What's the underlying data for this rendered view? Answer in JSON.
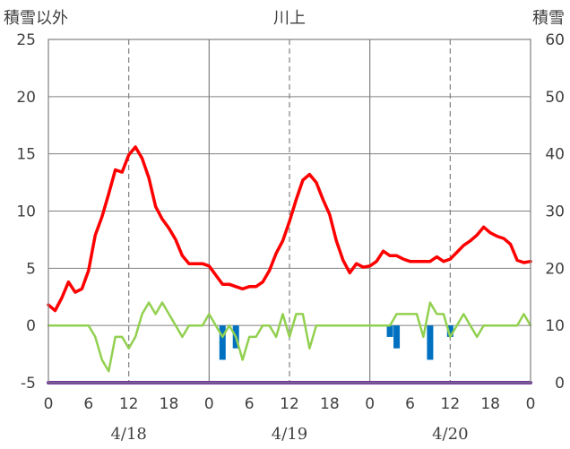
{
  "chart_data": {
    "type": "line",
    "title": "川上",
    "ylabel_left": "積雪以外",
    "ylabel_right": "積雪",
    "y_left_range": [
      -5,
      25
    ],
    "y_left_ticks": [
      "-5",
      "0",
      "5",
      "10",
      "15",
      "20",
      "25"
    ],
    "y_right_range": [
      0,
      60
    ],
    "y_right_ticks": [
      "0",
      "10",
      "20",
      "30",
      "40",
      "50",
      "60"
    ],
    "x_range_hours": [
      0,
      72
    ],
    "x_tick_labels": [
      "0",
      "6",
      "12",
      "18",
      "0",
      "6",
      "12",
      "18",
      "0",
      "6",
      "12",
      "18",
      "0"
    ],
    "date_labels": [
      "4/18",
      "4/19",
      "4/20"
    ],
    "grid": true,
    "colors": {
      "temperature": "#ff0000",
      "wind_diff": "#92d050",
      "snowfall_bars": "#0070c0",
      "snow_depth": "#7030a0",
      "grid": "#808080",
      "axis_label": "#404040"
    },
    "series": [
      {
        "key": "temperature",
        "axis": "left",
        "x": [
          0,
          1,
          2,
          3,
          4,
          5,
          6,
          7,
          8,
          9,
          10,
          11,
          12,
          13,
          14,
          15,
          16,
          17,
          18,
          19,
          20,
          21,
          22,
          23,
          24,
          25,
          26,
          27,
          28,
          29,
          30,
          31,
          32,
          33,
          34,
          35,
          36,
          37,
          38,
          39,
          40,
          41,
          42,
          43,
          44,
          45,
          46,
          47,
          48,
          49,
          50,
          51,
          52,
          53,
          54,
          55,
          56,
          57,
          58,
          59,
          60,
          61,
          62,
          63,
          64,
          65,
          66,
          67,
          68,
          69,
          70,
          71,
          72
        ],
        "values": [
          1.8,
          1.3,
          2.4,
          3.8,
          2.9,
          3.2,
          4.8,
          7.9,
          9.5,
          11.5,
          13.6,
          13.4,
          14.9,
          15.6,
          14.6,
          12.9,
          10.4,
          9.3,
          8.5,
          7.5,
          6.1,
          5.4,
          5.4,
          5.4,
          5.2,
          4.4,
          3.6,
          3.6,
          3.4,
          3.2,
          3.4,
          3.4,
          3.8,
          4.8,
          6.3,
          7.4,
          9.1,
          11.0,
          12.7,
          13.2,
          12.5,
          11.0,
          9.7,
          7.4,
          5.7,
          4.6,
          5.4,
          5.1,
          5.2,
          5.6,
          6.5,
          6.1,
          6.1,
          5.8,
          5.6,
          5.6,
          5.6,
          5.6,
          6.0,
          5.6,
          5.8,
          6.4,
          7.0,
          7.4,
          7.9,
          8.6,
          8.1,
          7.8,
          7.6,
          7.1,
          5.7,
          5.5,
          5.6
        ]
      },
      {
        "key": "wind_diff",
        "axis": "left",
        "x": [
          0,
          1,
          2,
          3,
          4,
          5,
          6,
          7,
          8,
          9,
          10,
          11,
          12,
          13,
          14,
          15,
          16,
          17,
          18,
          19,
          20,
          21,
          22,
          23,
          24,
          25,
          26,
          27,
          28,
          29,
          30,
          31,
          32,
          33,
          34,
          35,
          36,
          37,
          38,
          39,
          40,
          41,
          42,
          43,
          44,
          45,
          46,
          47,
          48,
          49,
          50,
          51,
          52,
          53,
          54,
          55,
          56,
          57,
          58,
          59,
          60,
          61,
          62,
          63,
          64,
          65,
          66,
          67,
          68,
          69,
          70,
          71,
          72
        ],
        "values": [
          0,
          0,
          0,
          0,
          0,
          0,
          0,
          -1,
          -3,
          -4,
          -1,
          -1,
          -2,
          -1,
          1,
          2,
          1,
          2,
          1,
          0,
          -1,
          0,
          0,
          0,
          1,
          0,
          -1,
          0,
          -1,
          -3,
          -1,
          -1,
          0,
          0,
          -1,
          1,
          -1,
          1,
          1,
          -2,
          0,
          0,
          0,
          0,
          0,
          0,
          0,
          0,
          0,
          0,
          0,
          0,
          1,
          1,
          1,
          1,
          -1,
          2,
          1,
          1,
          -1,
          0,
          1,
          0,
          -1,
          0,
          0,
          0,
          0,
          0,
          0,
          1,
          0
        ]
      },
      {
        "key": "snow_depth",
        "axis": "left",
        "x": [
          0,
          72
        ],
        "values": [
          -5,
          -5
        ]
      },
      {
        "key": "snowfall_bars",
        "axis": "left",
        "x": [
          26,
          28,
          51,
          52,
          57,
          60
        ],
        "values": [
          -3,
          -2,
          -1,
          -2,
          -3,
          -1
        ]
      }
    ]
  }
}
